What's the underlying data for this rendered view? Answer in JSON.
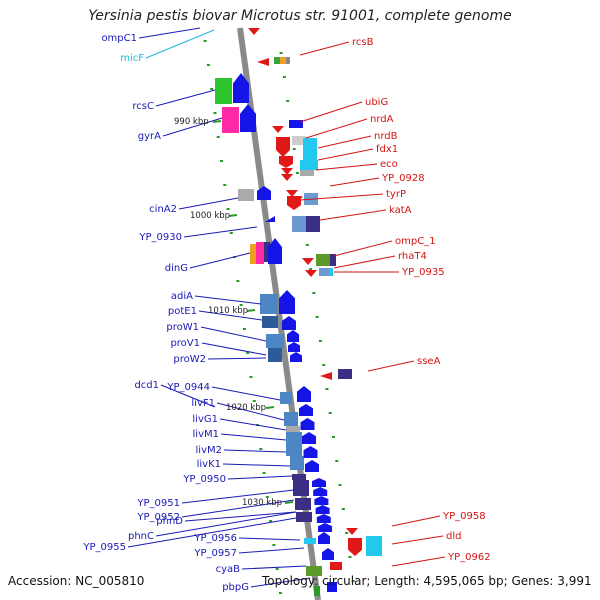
{
  "title": "Yersinia pestis biovar Microtus str. 91001, complete genome",
  "footer": {
    "accession": "Accession: NC_005810",
    "topology": "Topology: circular; Length: 4,595,065 bp; Genes: 3,991"
  },
  "kbp_markers": [
    "990 kbp",
    "1000 kbp",
    "1010 kbp",
    "1020 kbp",
    "1030 kbp"
  ],
  "left_genes": [
    "ompC1",
    "micF",
    "rcsC",
    "gyrA",
    "cinA2",
    "YP_0930",
    "dinG",
    "adiA",
    "potE1",
    "proW1",
    "proV1",
    "proW2",
    "dcd1",
    "YP_0944",
    "livF1",
    "livG1",
    "livM1",
    "livM2",
    "livK1",
    "YP_0950",
    "YP_0951",
    "YP_0952",
    "phnD",
    "phnC",
    "YP_0956",
    "YP_0955",
    "YP_0957",
    "cyaB",
    "pbpG"
  ],
  "right_genes": [
    "rcsB",
    "ubiG",
    "nrdA",
    "nrdB",
    "fdx1",
    "eco",
    "YP_0928",
    "tyrP",
    "katA",
    "ompC_1",
    "rhaT4",
    "YP_0935",
    "sseA",
    "YP_0958",
    "dld",
    "YP_0962"
  ],
  "colors": {
    "left_label": "#1a1ab8",
    "right_label": "#d31414",
    "rna_label": "#22b8e0",
    "backbone": "#8a8a8a",
    "tick": "#2a9a2a"
  }
}
